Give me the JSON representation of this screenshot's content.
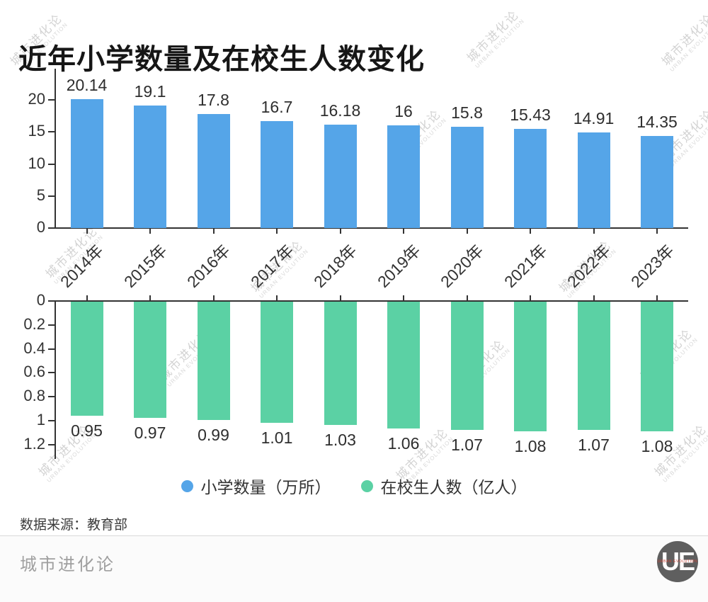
{
  "title": "近年小学数量及在校生人数变化",
  "watermark": {
    "cn": "城市进化论",
    "en": "URBAN EVOLUTION"
  },
  "chart_data": {
    "type": "bar",
    "title": "近年小学数量及在校生人数变化",
    "categories": [
      "2014年",
      "2015年",
      "2016年",
      "2017年",
      "2018年",
      "2019年",
      "2020年",
      "2021年",
      "2022年",
      "2023年"
    ],
    "grid": false,
    "legend_position": "bottom",
    "series": [
      {
        "name": "小学数量（万所）",
        "color": "#55a5e8",
        "orientation": "up",
        "values": [
          20.14,
          19.1,
          17.8,
          16.7,
          16.18,
          16,
          15.8,
          15.43,
          14.91,
          14.35
        ],
        "value_labels": [
          "20.14",
          "19.1",
          "17.8",
          "16.7",
          "16.18",
          "16",
          "15.8",
          "15.43",
          "14.91",
          "14.35"
        ],
        "axis_ticks": [
          0,
          5,
          10,
          15,
          20
        ],
        "axis_tick_labels": [
          "0",
          "5",
          "10",
          "15",
          "20"
        ],
        "ylim": [
          0,
          22.5
        ]
      },
      {
        "name": "在校生人数（亿人）",
        "color": "#5bd1a4",
        "orientation": "down",
        "values": [
          0.95,
          0.97,
          0.99,
          1.01,
          1.03,
          1.06,
          1.07,
          1.08,
          1.07,
          1.08
        ],
        "value_labels": [
          "0.95",
          "0.97",
          "0.99",
          "1.01",
          "1.03",
          "1.06",
          "1.07",
          "1.08",
          "1.07",
          "1.08"
        ],
        "axis_ticks": [
          0,
          0.2,
          0.4,
          0.6,
          0.8,
          1,
          1.2
        ],
        "axis_tick_labels": [
          "0",
          "0.2",
          "0.4",
          "0.6",
          "0.8",
          "1",
          "1.2"
        ],
        "ylim": [
          0,
          1.3
        ]
      }
    ]
  },
  "footer": {
    "source": "数据来源：教育部",
    "brand": "城市进化论",
    "logo": {
      "text": "UE",
      "subtext": "URBAN EVOLUTION",
      "bg": "#5f5f5f",
      "accent": "#cc4437"
    }
  },
  "colors": {
    "axis": "#333333",
    "bar_blue": "#55a5e8",
    "bar_green": "#5bd1a4"
  }
}
